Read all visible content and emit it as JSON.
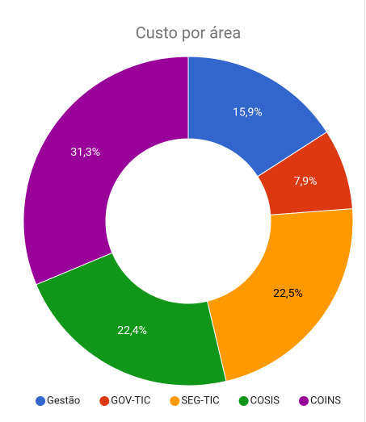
{
  "chart_data": {
    "type": "donut",
    "title": "Custo por área",
    "categories": [
      "Gestão",
      "GOV-TIC",
      "SEG-TIC",
      "COSIS",
      "COINS"
    ],
    "values": [
      15.9,
      7.9,
      22.5,
      22.4,
      31.3
    ],
    "value_labels": [
      "15,9%",
      "7,9%",
      "22,5%",
      "22,4%",
      "31,3%"
    ],
    "colors": [
      "#3366cc",
      "#dc3912",
      "#ff9900",
      "#109618",
      "#990099"
    ],
    "legend": "bottom"
  }
}
